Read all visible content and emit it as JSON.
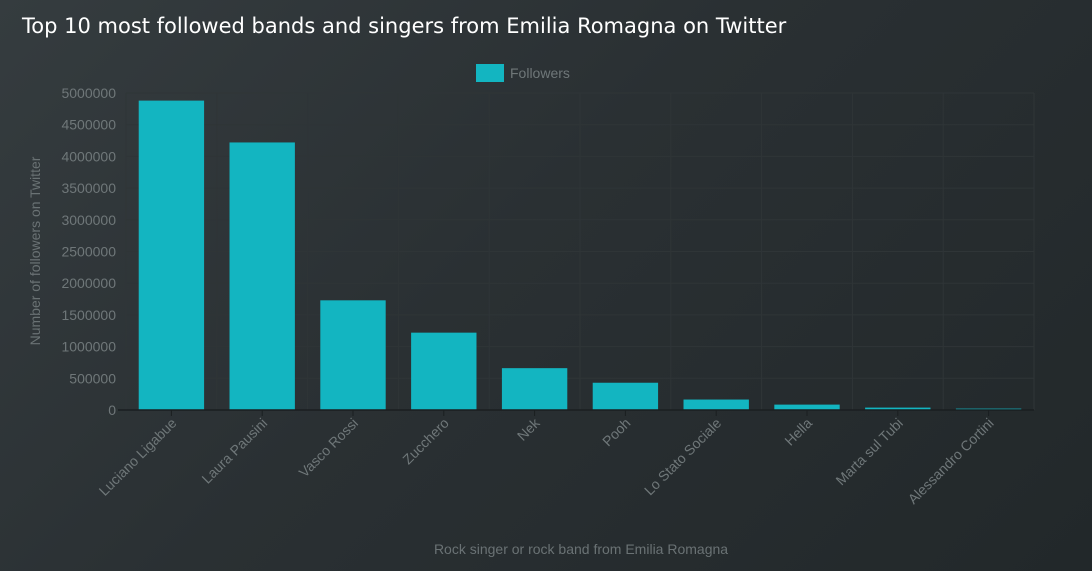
{
  "colors": {
    "bar": "#13b5c1",
    "grid": "#2f3537",
    "axis": "#1a1e20"
  },
  "chart_data": {
    "type": "bar",
    "title": "Top 10 most followed bands and singers from Emilia Romagna on Twitter",
    "xlabel": "Rock singer or rock band from Emilia Romagna",
    "ylabel": "Number of followers on Twitter",
    "legend": {
      "position": "top",
      "entries": [
        "Followers"
      ]
    },
    "categories": [
      "Luciano Ligabue",
      "Laura Pausini",
      "Vasco Rossi",
      "Zucchero",
      "Nek",
      "Pooh",
      "Lo Stato Sociale",
      "Hella",
      "Marta sul Tubi",
      "Alessandro Cortini"
    ],
    "series": [
      {
        "name": "Followers",
        "values": [
          4880000,
          4220000,
          1730000,
          1220000,
          660000,
          430000,
          165000,
          85000,
          38000,
          22000
        ]
      }
    ],
    "ylim": [
      0,
      5000000
    ],
    "yticks": [
      "0",
      "500000",
      "1000000",
      "1500000",
      "2000000",
      "2500000",
      "3000000",
      "3500000",
      "4000000",
      "4500000",
      "5000000"
    ],
    "grid": true
  }
}
